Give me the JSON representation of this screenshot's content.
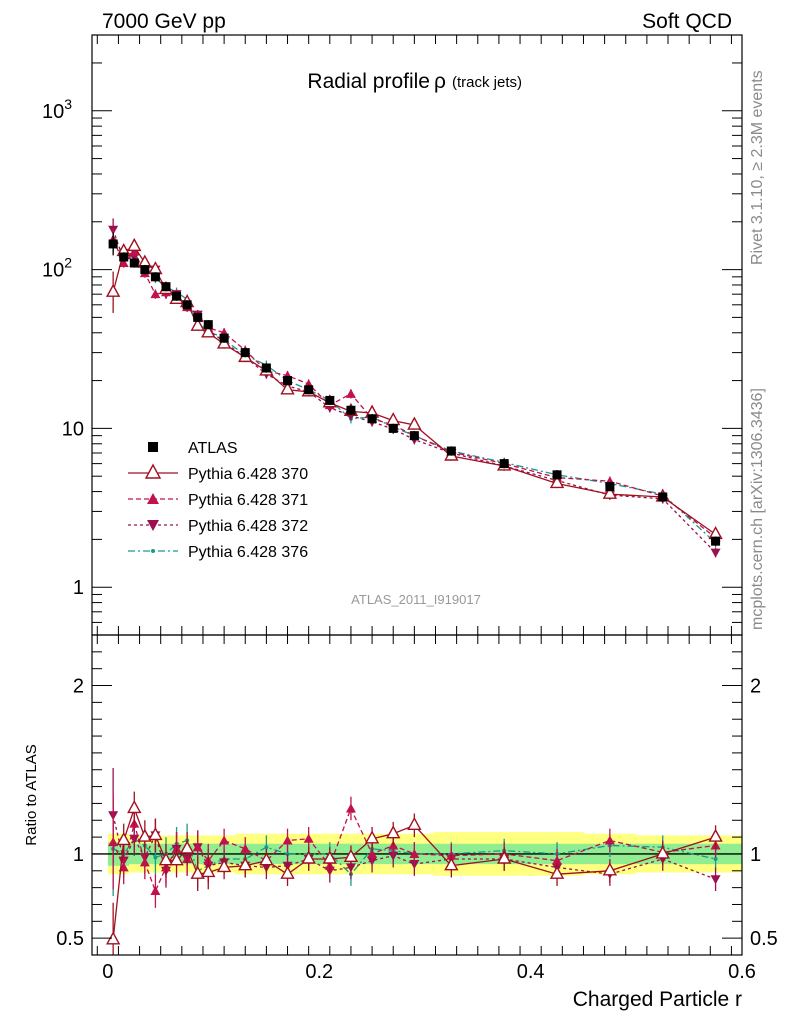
{
  "header": {
    "left": "7000 GeV pp",
    "right": "Soft QCD"
  },
  "side": {
    "rivet": "Rivet 3.1.10, ≥ 2.3M events",
    "mcplots": "mcplots.cern.ch [arXiv:1306.3436]"
  },
  "watermark": "ATLAS_2011_I919017",
  "colors": {
    "atlas": "#000000",
    "p370": "#a01020",
    "p371": "#c0124e",
    "p372": "#9a1050",
    "p376": "#1a9a8a",
    "band_inner": "#90ee90",
    "band_outer": "#ffff80"
  },
  "chart_data": [
    {
      "panel": "main",
      "type": "scatter",
      "title": "Radial profile",
      "title_symbol": "ρ",
      "title_suffix": "(track jets)",
      "xlabel": "Charged Particle r",
      "ylabel": "",
      "xlim": [
        -0.015,
        0.6
      ],
      "ylim": [
        0.5,
        3000
      ],
      "yscale": "log",
      "ytick_labels": [
        "1",
        "10",
        "10^2",
        "10^3"
      ],
      "xtick_labels": [
        "0",
        "0.2",
        "0.4",
        "0.6"
      ],
      "legend_position": "middle-left",
      "x": [
        0.005,
        0.015,
        0.025,
        0.035,
        0.045,
        0.055,
        0.065,
        0.075,
        0.085,
        0.095,
        0.11,
        0.13,
        0.15,
        0.17,
        0.19,
        0.21,
        0.23,
        0.25,
        0.27,
        0.29,
        0.325,
        0.375,
        0.425,
        0.475,
        0.525,
        0.575
      ],
      "series": [
        {
          "name": "ATLAS",
          "marker": "square",
          "values": [
            145,
            120,
            110,
            100,
            90,
            78,
            68,
            60,
            50,
            45,
            37,
            30,
            24,
            20,
            17.5,
            15,
            13,
            11.5,
            10,
            9,
            7.2,
            6.0,
            5.1,
            4.3,
            3.7,
            1.95
          ]
        },
        {
          "name": "Pythia 6.428 370",
          "marker": "open-triangle",
          "values": [
            72,
            130,
            140,
            110,
            100,
            75,
            65,
            62,
            44,
            40,
            34,
            28,
            23,
            17.5,
            17,
            14.5,
            12.8,
            12.5,
            11.2,
            10.5,
            6.7,
            5.8,
            4.5,
            3.85,
            3.7,
            2.15
          ]
        },
        {
          "name": "Pythia 6.428 371",
          "marker": "triangle-up",
          "values": [
            155,
            110,
            130,
            95,
            70,
            72,
            70,
            58,
            52,
            43,
            40,
            31,
            23,
            21.5,
            19,
            14,
            16.5,
            11.5,
            10.5,
            9.0,
            7.1,
            6.0,
            4.9,
            4.65,
            3.75,
            2.05
          ]
        },
        {
          "name": "Pythia 6.428 372",
          "marker": "triangle-down",
          "values": [
            178,
            115,
            120,
            98,
            100,
            70,
            70,
            58,
            52,
            42,
            35,
            28,
            22,
            18.5,
            17,
            13.5,
            12,
            11,
            9.9,
            8.5,
            7.0,
            5.8,
            4.7,
            3.8,
            3.6,
            1.65
          ]
        },
        {
          "name": "Pythia 6.428 376",
          "marker": "dot",
          "values": [
            150,
            120,
            120,
            105,
            88,
            78,
            72,
            65,
            45,
            42,
            36,
            29,
            25,
            20,
            17.5,
            15,
            11.5,
            11.8,
            10.2,
            9.0,
            7.2,
            6.1,
            5.1,
            4.5,
            3.85,
            1.9
          ]
        }
      ]
    },
    {
      "panel": "ratio",
      "type": "scatter",
      "ylabel": "Ratio to ATLAS",
      "xlim": [
        -0.015,
        0.6
      ],
      "ylim": [
        0.4,
        2.3
      ],
      "ytick_labels": [
        "0.5",
        "1",
        "2"
      ],
      "x": [
        0.005,
        0.015,
        0.025,
        0.035,
        0.045,
        0.055,
        0.065,
        0.075,
        0.085,
        0.095,
        0.11,
        0.13,
        0.15,
        0.17,
        0.19,
        0.21,
        0.23,
        0.25,
        0.27,
        0.29,
        0.325,
        0.375,
        0.425,
        0.475,
        0.525,
        0.575
      ],
      "band_inner": [
        0.07,
        0.07,
        0.06,
        0.06,
        0.06,
        0.06,
        0.06,
        0.06,
        0.06,
        0.06,
        0.06,
        0.06,
        0.06,
        0.06,
        0.06,
        0.06,
        0.06,
        0.06,
        0.06,
        0.06,
        0.06,
        0.06,
        0.06,
        0.06,
        0.06,
        0.06
      ],
      "band_outer": [
        0.12,
        0.12,
        0.11,
        0.11,
        0.11,
        0.11,
        0.11,
        0.11,
        0.11,
        0.11,
        0.11,
        0.12,
        0.12,
        0.12,
        0.12,
        0.12,
        0.12,
        0.12,
        0.12,
        0.12,
        0.13,
        0.13,
        0.13,
        0.12,
        0.11,
        0.11
      ],
      "series": [
        {
          "name": "Pythia 6.428 370",
          "values": [
            0.49,
            1.08,
            1.27,
            1.1,
            1.11,
            0.96,
            0.96,
            1.03,
            0.88,
            0.89,
            0.92,
            0.93,
            0.96,
            0.88,
            0.97,
            0.97,
            0.98,
            1.09,
            1.12,
            1.17,
            0.93,
            0.97,
            0.88,
            0.9,
            1.0,
            1.1
          ]
        },
        {
          "name": "Pythia 6.428 371",
          "values": [
            1.07,
            0.92,
            1.18,
            0.95,
            0.78,
            0.92,
            1.03,
            0.97,
            1.04,
            0.96,
            1.08,
            1.03,
            0.96,
            1.08,
            1.09,
            0.93,
            1.27,
            1.0,
            1.05,
            1.0,
            0.99,
            1.0,
            0.96,
            1.08,
            1.01,
            1.05
          ]
        },
        {
          "name": "Pythia 6.428 372",
          "values": [
            1.23,
            0.96,
            1.09,
            0.98,
            1.11,
            0.9,
            1.03,
            0.97,
            1.04,
            0.93,
            0.95,
            0.93,
            0.92,
            0.93,
            0.97,
            0.9,
            0.92,
            0.96,
            0.99,
            0.94,
            0.97,
            0.97,
            0.92,
            0.88,
            0.97,
            0.85
          ]
        },
        {
          "name": "Pythia 6.428 376",
          "values": [
            1.03,
            1.0,
            1.09,
            1.05,
            0.98,
            1.0,
            1.06,
            1.08,
            0.9,
            0.93,
            0.97,
            0.97,
            1.04,
            1.0,
            1.0,
            1.0,
            0.88,
            1.03,
            1.02,
            1.0,
            1.0,
            1.02,
            1.0,
            1.05,
            1.04,
            0.97
          ]
        }
      ]
    }
  ]
}
